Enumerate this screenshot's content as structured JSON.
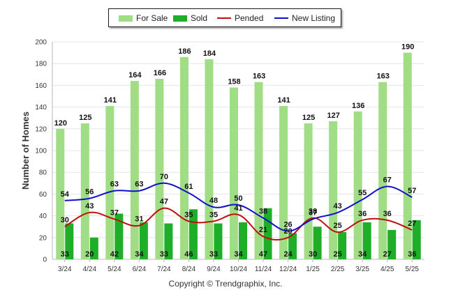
{
  "chart_data": {
    "type": "bar",
    "categories": [
      "3/24",
      "4/24",
      "5/24",
      "6/24",
      "7/24",
      "8/24",
      "9/24",
      "10/24",
      "11/24",
      "12/24",
      "1/25",
      "2/25",
      "3/25",
      "4/25",
      "5/25"
    ],
    "series": [
      {
        "name": "For Sale",
        "kind": "bar",
        "color": "#a0dd84",
        "values": [
          120,
          125,
          141,
          164,
          166,
          186,
          184,
          158,
          163,
          141,
          125,
          127,
          136,
          163,
          190
        ]
      },
      {
        "name": "Sold",
        "kind": "bar",
        "color": "#1fae28",
        "values": [
          33,
          20,
          42,
          34,
          33,
          46,
          33,
          34,
          47,
          24,
          30,
          25,
          34,
          27,
          36
        ]
      },
      {
        "name": "Pended",
        "kind": "line",
        "color": "#c0100e",
        "values": [
          30,
          43,
          37,
          31,
          47,
          35,
          35,
          41,
          21,
          20,
          38,
          25,
          36,
          36,
          27
        ]
      },
      {
        "name": "New Listing",
        "kind": "line",
        "color": "#1010cc",
        "values": [
          54,
          56,
          63,
          63,
          70,
          61,
          48,
          50,
          38,
          26,
          37,
          43,
          55,
          67,
          57
        ]
      }
    ],
    "ylabel": "Number of Homes",
    "xlabel": "",
    "ylim": [
      0,
      200
    ],
    "yticks": [
      0,
      20,
      40,
      60,
      80,
      100,
      120,
      140,
      160,
      180,
      200
    ],
    "grid": true,
    "legend": "top-center",
    "footer": "Copyright © Trendgraphix, Inc."
  }
}
